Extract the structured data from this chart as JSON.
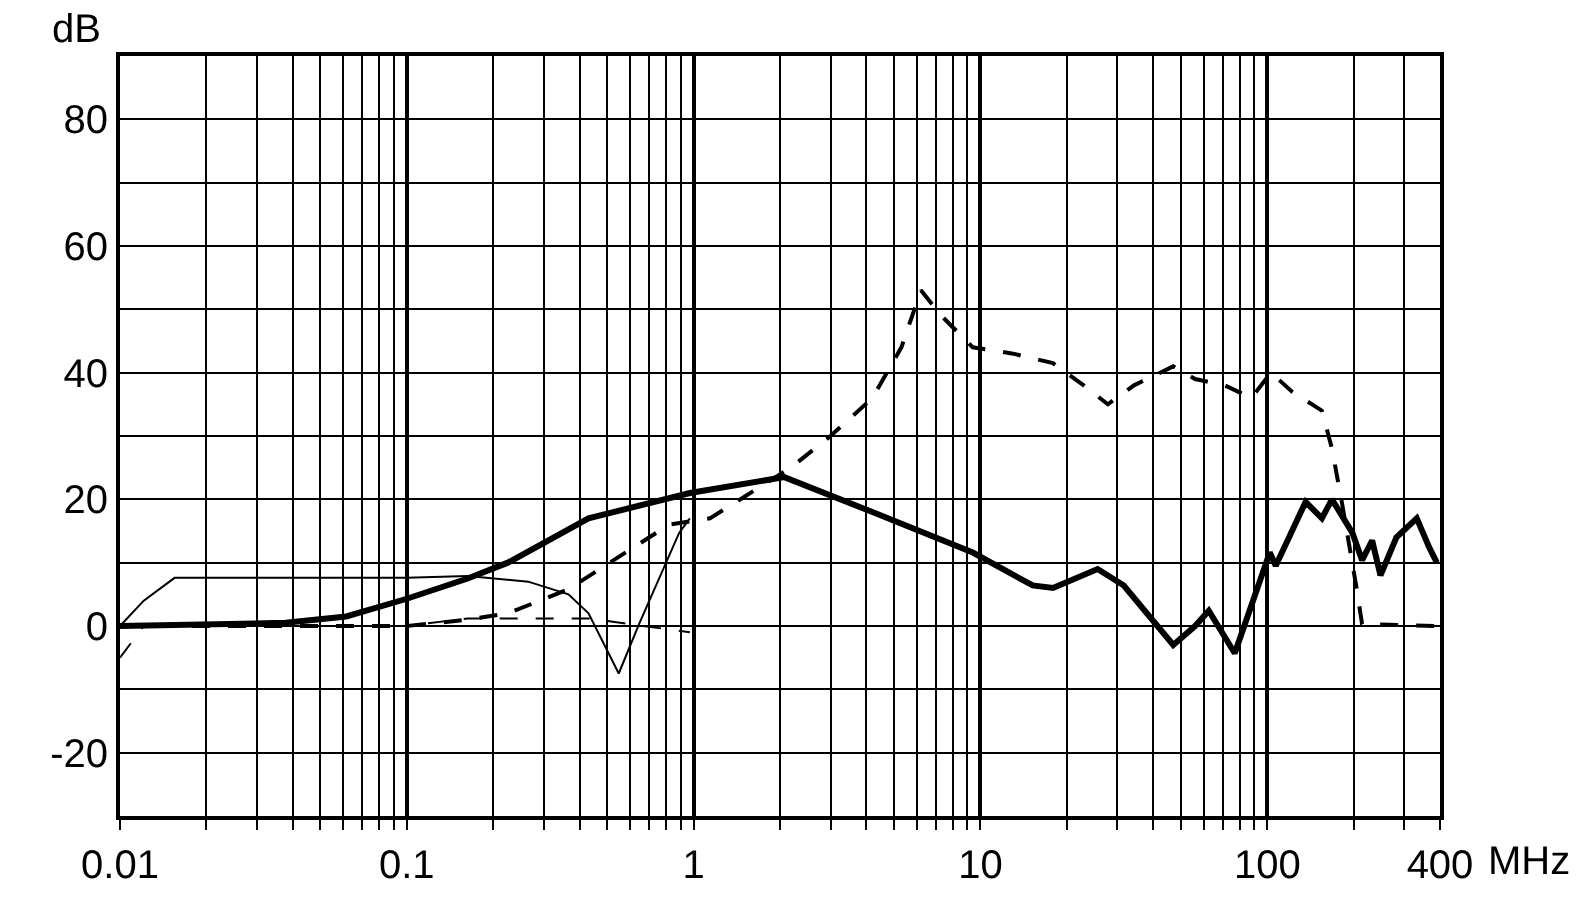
{
  "chart_data": {
    "type": "line",
    "xlabel": "MHz",
    "ylabel": "dB",
    "log": "x",
    "grid": true,
    "marker": "none",
    "xlim": [
      0.01,
      400
    ],
    "xticks": [
      0.01,
      0.1,
      1,
      10,
      100,
      400
    ],
    "ylim": [
      -30,
      90
    ],
    "yticks": [
      -20,
      0,
      20,
      40,
      60,
      80
    ],
    "series": [
      {
        "color": "#000000",
        "line_style": "solid",
        "x": [
          0.01,
          0.0378,
          0.0615,
          0.1,
          0.163,
          0.225,
          0.43,
          0.97,
          2.07,
          4.2,
          9.4,
          15.2,
          17.9,
          25.6,
          31.6,
          47,
          56,
          62.5,
          77,
          102,
          107,
          136,
          155,
          168,
          198,
          214,
          232,
          248,
          282,
          332,
          366,
          390
        ],
        "values": [
          0,
          0.5,
          1.5,
          4.3,
          7.5,
          10,
          17,
          21,
          23.5,
          18,
          11.6,
          6.4,
          6,
          9,
          6.4,
          -3,
          0,
          2.4,
          -4.3,
          11.6,
          9.5,
          19.6,
          17,
          20,
          14.7,
          10.4,
          13.5,
          8,
          14,
          17,
          12.5,
          10
        ]
      },
      {
        "color": "#000000",
        "line_style": "dashed",
        "x": [
          0.01,
          0.1,
          0.163,
          0.225,
          0.366,
          0.82,
          1.14,
          2.18,
          3.0,
          4.2,
          5.3,
          6.2,
          7.3,
          9.4,
          13,
          17.9,
          22.9,
          27.8,
          34.3,
          47,
          56,
          71,
          88,
          103,
          122,
          155,
          168,
          182,
          204,
          214,
          390
        ],
        "values": [
          0,
          0,
          1,
          2,
          5.8,
          16,
          17,
          25,
          30,
          36,
          44,
          53,
          49,
          44,
          43,
          41.5,
          38,
          35,
          38,
          41,
          39,
          38,
          36,
          40,
          37,
          34,
          28,
          19.5,
          6.4,
          0.3,
          0
        ]
      },
      {
        "color": "#000000",
        "line_style": "solid",
        "x": [
          0.01,
          0.0121,
          0.0155,
          0.1,
          0.163,
          0.265,
          0.366,
          0.43,
          0.548,
          0.645,
          0.89,
          0.97
        ],
        "values": [
          0,
          4,
          7.6,
          7.6,
          7.9,
          7,
          5,
          2,
          -7.5,
          0.3,
          14.7,
          17
        ]
      },
      {
        "color": "#000000",
        "line_style": "dashed",
        "x": [
          0.01,
          0.0121,
          0.1,
          0.163,
          0.43,
          0.97
        ],
        "values": [
          -5,
          0,
          0,
          1.2,
          1.2,
          -1
        ]
      }
    ]
  }
}
